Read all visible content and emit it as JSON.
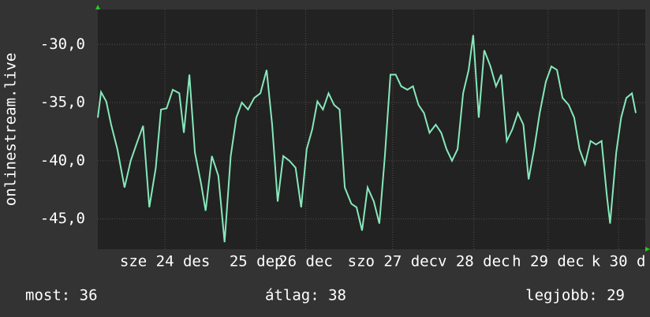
{
  "chart_data": {
    "type": "line",
    "y_label": "onlinestream.live",
    "x": [
      0,
      1,
      2.6,
      4.1,
      6,
      8.2,
      10.1,
      12.2,
      13.9,
      15.8,
      17.8,
      19.4,
      21.1,
      23,
      25,
      26.4,
      28.1,
      29.8,
      31.7,
      33.1,
      35,
      37,
      38.9,
      40.8,
      42.5,
      44.2,
      46.1,
      48,
      49.9,
      51.8,
      53.5,
      55.2,
      56.9,
      58.8,
      60.7,
      62.4,
      64.1,
      65.8,
      67.4,
      69.1,
      70.8,
      72.5,
      74.2,
      75.8,
      77.8,
      79.4,
      81.1,
      82.8,
      84.7,
      86.4,
      88.1,
      89.8,
      91.4,
      93.1,
      95,
      96.7,
      98.4,
      100.1,
      101.8,
      103.7,
      105.4,
      107,
      108.7,
      110.4,
      112.1,
      113.8,
      115.2,
      116.9,
      118.6,
      120.5,
      122.2,
      123.8,
      125.5,
      127.2,
      128.9,
      130.6,
      132.2,
      133.9,
      135.6,
      137.5,
      139.2,
      140.9,
      142.6,
      144.5,
      146.2,
      147.8,
      149.5,
      151.2,
      152.9,
      154.6,
      156.2,
      157.2,
      159.1,
      160.6,
      162.2,
      163.9,
      165.1
    ],
    "series": [
      {
        "name": "onlinestream.live",
        "color": "#86e8bb",
        "values": [
          -36.3,
          -34.1,
          -34.9,
          -36.9,
          -39,
          -42.3,
          -40,
          -38.3,
          -37,
          -44,
          -40.6,
          -35.6,
          -35.5,
          -33.9,
          -34.2,
          -37.6,
          -32.6,
          -39.3,
          -42,
          -44.3,
          -39.6,
          -41.3,
          -47,
          -39.6,
          -36.3,
          -35,
          -35.6,
          -34.6,
          -34.2,
          -32.2,
          -36.9,
          -43.5,
          -39.6,
          -40,
          -40.6,
          -44,
          -39,
          -37.3,
          -34.9,
          -35.6,
          -34.2,
          -35.2,
          -35.6,
          -42.3,
          -43.7,
          -44,
          -46,
          -42.3,
          -43.5,
          -45.4,
          -39.6,
          -32.6,
          -32.6,
          -33.6,
          -33.9,
          -33.6,
          -35.2,
          -35.9,
          -37.6,
          -36.9,
          -37.6,
          -39,
          -40,
          -39,
          -34.2,
          -32.2,
          -29.2,
          -36.3,
          -30.5,
          -31.9,
          -33.6,
          -32.6,
          -38.3,
          -37.3,
          -35.9,
          -36.9,
          -41.6,
          -39,
          -35.9,
          -33.2,
          -31.9,
          -32.2,
          -34.6,
          -35.2,
          -36.3,
          -39,
          -40.3,
          -38.3,
          -38.6,
          -38.3,
          -43,
          -45.4,
          -39.3,
          -36.3,
          -34.6,
          -34.2,
          -35.9
        ]
      }
    ],
    "xlim": [
      0,
      168
    ],
    "xticks": [
      {
        "value": 20.6,
        "label": "sze 24 des"
      },
      {
        "value": 48.7,
        "label": "25 dep"
      },
      {
        "value": 63.8,
        "label": "26 dec"
      },
      {
        "value": 90.5,
        "label": "szo 27 dec"
      },
      {
        "value": 115.4,
        "label": "v 28 dec"
      },
      {
        "value": 138.2,
        "label": "h 29 dec"
      },
      {
        "value": 159.8,
        "label": "k 30 d"
      }
    ],
    "ylim": [
      -47.6,
      -27
    ],
    "yticks": [
      {
        "value": -30,
        "label": "-30,0"
      },
      {
        "value": -35,
        "label": "-35,0"
      },
      {
        "value": -40,
        "label": "-40,0"
      },
      {
        "value": -45,
        "label": "-45,0"
      }
    ],
    "grid": true,
    "stats": [
      "most: 36",
      "átlag: 38",
      "legjobb: 29"
    ]
  }
}
